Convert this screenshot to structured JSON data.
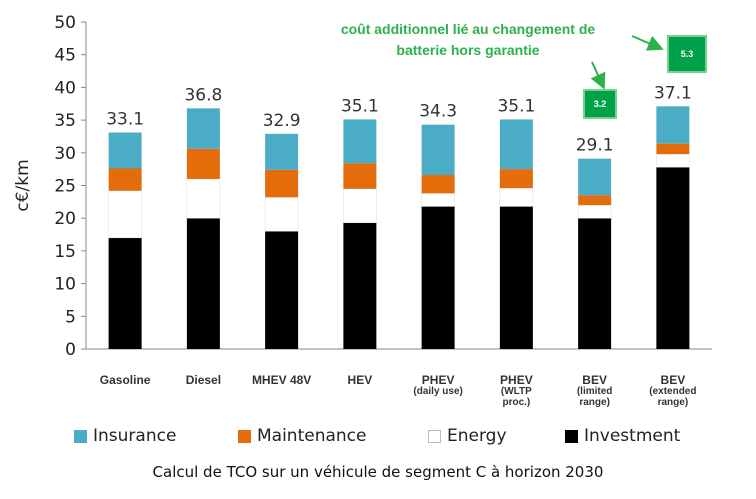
{
  "chart_data": {
    "type": "bar",
    "stacked": true,
    "ylabel": "c€/km",
    "ylim": [
      0,
      50
    ],
    "yticks": [
      0,
      5,
      10,
      15,
      20,
      25,
      30,
      35,
      40,
      45,
      50
    ],
    "grid": false,
    "legend_position": "bottom",
    "categories": [
      [
        "Gasoline"
      ],
      [
        "Diesel"
      ],
      [
        "MHEV 48V"
      ],
      [
        "HEV"
      ],
      [
        "PHEV",
        "(daily use)"
      ],
      [
        "PHEV",
        "(WLTP",
        "proc.)"
      ],
      [
        "BEV",
        "(limited",
        "range)"
      ],
      [
        "BEV",
        "(extended",
        "range)"
      ]
    ],
    "totals": [
      "33.1",
      "36.8",
      "32.9",
      "35.1",
      "34.3",
      "35.1",
      "29.1",
      "37.1"
    ],
    "series": [
      {
        "name": "Investment",
        "color": "#000000",
        "values": [
          17.0,
          20.0,
          18.0,
          19.3,
          21.8,
          21.8,
          20.0,
          27.8
        ]
      },
      {
        "name": "Energy",
        "color": "#ffffff",
        "values": [
          7.2,
          6.0,
          5.2,
          5.2,
          2.0,
          2.8,
          2.0,
          2.0
        ]
      },
      {
        "name": "Maintenance",
        "color": "#e46c0a",
        "values": [
          3.4,
          4.6,
          4.2,
          3.9,
          2.8,
          2.9,
          1.5,
          1.6
        ]
      },
      {
        "name": "Insurance",
        "color": "#4bacc6",
        "values": [
          5.5,
          6.2,
          5.5,
          6.7,
          7.7,
          7.6,
          5.6,
          5.7
        ]
      }
    ],
    "legend_order": [
      "Insurance",
      "Maintenance",
      "Energy",
      "Investment"
    ],
    "extras": [
      {
        "category_index": 6,
        "value": 3.2,
        "label": "3.2"
      },
      {
        "category_index": 7,
        "value": 5.3,
        "label": "5.3"
      }
    ],
    "annotation": {
      "lines": [
        "coût additionnel lié au changement de",
        "batterie hors garantie"
      ],
      "color": "#2bb24c"
    },
    "caption": "Calcul de TCO sur un véhicule de segment C à horizon 2030"
  }
}
